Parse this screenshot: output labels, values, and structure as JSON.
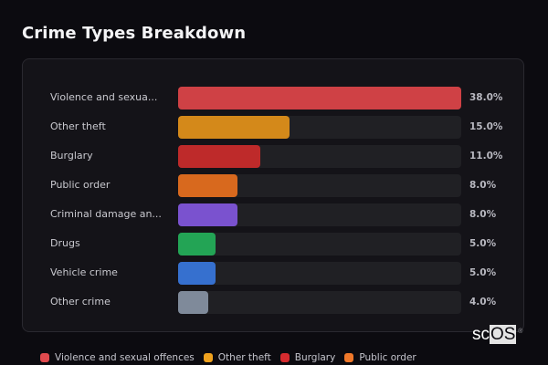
{
  "title": "Crime Types Breakdown",
  "logo": {
    "prefix": "sc",
    "suffix": "OS",
    "mark": "®"
  },
  "chart_data": {
    "type": "bar",
    "orientation": "horizontal",
    "title": "Crime Types Breakdown",
    "categories": [
      "Violence and sexual offences",
      "Other theft",
      "Burglary",
      "Public order",
      "Criminal damage and arson",
      "Drugs",
      "Vehicle crime",
      "Other crime"
    ],
    "display_labels": [
      "Violence and sexua...",
      "Other theft",
      "Burglary",
      "Public order",
      "Criminal damage an...",
      "Drugs",
      "Vehicle crime",
      "Other crime"
    ],
    "values": [
      38.0,
      15.0,
      11.0,
      8.0,
      8.0,
      5.0,
      5.0,
      4.0
    ],
    "value_labels": [
      "38.0%",
      "15.0%",
      "11.0%",
      "8.0%",
      "8.0%",
      "5.0%",
      "5.0%",
      "4.0%"
    ],
    "colors": [
      "#cf4145",
      "#d4891a",
      "#be2a2a",
      "#d8691e",
      "#7a52cf",
      "#23a455",
      "#3670cf",
      "#7f8a9a"
    ],
    "xlabel": "",
    "ylabel": "",
    "legend_position": "bottom",
    "grid": false
  },
  "legend": [
    {
      "label": "Violence and sexual offences",
      "color": "#e04a4e"
    },
    {
      "label": "Other theft",
      "color": "#f0a21e"
    },
    {
      "label": "Burglary",
      "color": "#d52b2f"
    },
    {
      "label": "Public order",
      "color": "#f0782a"
    }
  ]
}
